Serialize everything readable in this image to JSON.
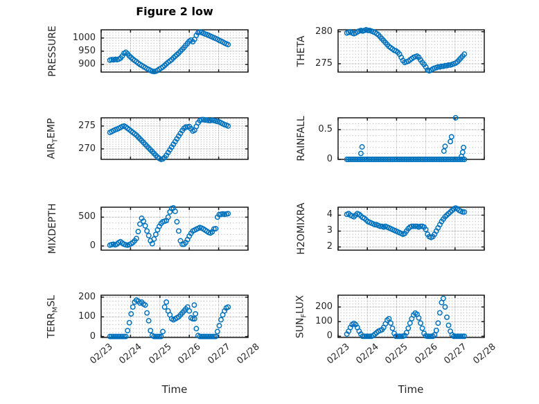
{
  "figure": {
    "title": "Figure 2 low",
    "marker_color": "#0072BD",
    "axis_color": "#1a1a1a",
    "background": "#ffffff"
  },
  "xaxis": {
    "label": "Time",
    "xlim": [
      0,
      5
    ],
    "ticks": [
      0,
      1,
      2,
      3,
      4,
      5
    ],
    "tick_labels": [
      "02/23",
      "02/24",
      "02/25",
      "02/26",
      "02/27",
      "02/28"
    ],
    "minor_step": 0.1
  },
  "chart_data": [
    {
      "type": "scatter",
      "name": "pressure",
      "position": {
        "row": 0,
        "col": 0
      },
      "ylabel": "PRESSURE",
      "ylabel_segments": [
        {
          "text": "PRESSURE",
          "sub": false
        }
      ],
      "ylim": [
        871,
        1031
      ],
      "y_minor_step": 10,
      "yticks": [
        {
          "value": 900,
          "label": "900"
        },
        {
          "value": 950,
          "label": "950"
        },
        {
          "value": 1000,
          "label": "1000"
        }
      ],
      "x_start": 0.3,
      "x_step": 0.06,
      "values": [
        916,
        918,
        917,
        919,
        918,
        920,
        924,
        932,
        942,
        946,
        940,
        932,
        926,
        920,
        915,
        910,
        905,
        900,
        896,
        892,
        888,
        884,
        881,
        877,
        874,
        873,
        874,
        877,
        882,
        886,
        890,
        896,
        902,
        908,
        913,
        918,
        925,
        931,
        937,
        943,
        950,
        957,
        964,
        972,
        980,
        988,
        992,
        986,
        995,
        1010,
        1020,
        1023,
        1021,
        1018,
        1015,
        1013,
        1010,
        1007,
        1004,
        1001,
        998,
        995,
        991,
        988,
        985,
        981,
        978,
        975
      ]
    },
    {
      "type": "scatter",
      "name": "theta",
      "position": {
        "row": 0,
        "col": 1
      },
      "ylabel": "THETA",
      "ylabel_segments": [
        {
          "text": "THETA",
          "sub": false
        }
      ],
      "ylim": [
        273.7,
        280.3
      ],
      "y_minor_step": 0.5,
      "yticks": [
        {
          "value": 275,
          "label": "275"
        },
        {
          "value": 280,
          "label": "280"
        }
      ],
      "x_start": 0.3,
      "x_step": 0.06,
      "values": [
        279.8,
        279.9,
        280.0,
        279.8,
        279.7,
        279.8,
        280.0,
        280.1,
        280.2,
        280.1,
        280.2,
        280.3,
        280.2,
        280.2,
        280.1,
        280.0,
        279.9,
        279.7,
        279.5,
        279.2,
        278.9,
        278.6,
        278.3,
        278.0,
        277.7,
        277.5,
        277.3,
        277.1,
        277.0,
        276.8,
        276.5,
        276.0,
        275.5,
        275.2,
        275.3,
        275.4,
        275.6,
        275.8,
        276.0,
        276.1,
        276.2,
        276.0,
        275.6,
        275.2,
        274.9,
        274.5,
        274.0,
        273.9,
        274.0,
        274.2,
        274.3,
        274.4,
        274.5,
        274.5,
        274.6,
        274.6,
        274.7,
        274.7,
        274.8,
        274.8,
        274.9,
        275.0,
        275.1,
        275.3,
        275.6,
        275.9,
        276.2,
        276.5
      ]
    },
    {
      "type": "scatter",
      "name": "air-temp",
      "position": {
        "row": 1,
        "col": 0
      },
      "ylabel": "AIR_TEMP",
      "ylabel_segments": [
        {
          "text": "AIR",
          "sub": false
        },
        {
          "text": "T",
          "sub": true
        },
        {
          "text": "EMP",
          "sub": false
        }
      ],
      "ylim": [
        267.7,
        276.8
      ],
      "y_minor_step": 0.5,
      "yticks": [
        {
          "value": 270,
          "label": "270"
        },
        {
          "value": 275,
          "label": "275"
        }
      ],
      "x_start": 0.3,
      "x_step": 0.06,
      "values": [
        273.6,
        273.8,
        274.0,
        274.2,
        274.3,
        274.5,
        274.7,
        274.9,
        275.0,
        274.8,
        274.5,
        274.2,
        273.9,
        273.6,
        273.3,
        273.0,
        272.6,
        272.2,
        271.8,
        271.4,
        271.0,
        270.6,
        270.2,
        269.8,
        269.4,
        269.0,
        268.6,
        268.2,
        267.9,
        267.7,
        267.8,
        268.1,
        268.6,
        269.2,
        269.8,
        270.4,
        271.0,
        271.6,
        272.2,
        272.8,
        273.4,
        274.0,
        274.5,
        274.8,
        274.8,
        274.9,
        274.4,
        273.9,
        274.1,
        274.9,
        275.7,
        276.2,
        276.4,
        276.4,
        276.3,
        276.3,
        276.2,
        276.2,
        276.3,
        276.2,
        276.1,
        276.0,
        275.9,
        275.7,
        275.5,
        275.3,
        275.2,
        275.0
      ]
    },
    {
      "type": "scatter",
      "name": "rainfall",
      "position": {
        "row": 1,
        "col": 1
      },
      "ylabel": "RAINFALL",
      "ylabel_segments": [
        {
          "text": "RAINFALL",
          "sub": false
        }
      ],
      "ylim": [
        0,
        0.7
      ],
      "y_minor_step": 0.1,
      "yticks": [
        {
          "value": 0,
          "label": "0"
        },
        {
          "value": 0.5,
          "label": "0.5"
        }
      ],
      "x_start": 0.3,
      "x_step": 0.06,
      "values": [
        0,
        0,
        0,
        0,
        0,
        0,
        0,
        0,
        0,
        0,
        0,
        0,
        0,
        0,
        0,
        0,
        0,
        0,
        0,
        0,
        0,
        0,
        0,
        0,
        0,
        0,
        0,
        0,
        0,
        0,
        0,
        0,
        0,
        0,
        0,
        0,
        0,
        0,
        0,
        0,
        0,
        0,
        0,
        0,
        0,
        0,
        0,
        0,
        0,
        0,
        0,
        0,
        0,
        0,
        0,
        0,
        0,
        0,
        0,
        0,
        0,
        0,
        0,
        0,
        0,
        0,
        0,
        0
      ],
      "extra_points": [
        [
          0.78,
          0.1
        ],
        [
          0.82,
          0.21
        ],
        [
          3.62,
          0.14
        ],
        [
          3.66,
          0.22
        ],
        [
          3.84,
          0.3
        ],
        [
          3.88,
          0.38
        ],
        [
          4.02,
          0.7
        ],
        [
          4.22,
          0.05
        ],
        [
          4.26,
          0.12
        ],
        [
          4.29,
          0.2
        ]
      ]
    },
    {
      "type": "scatter",
      "name": "mixdepth",
      "position": {
        "row": 2,
        "col": 0
      },
      "ylabel": "MIXDEPTH",
      "ylabel_segments": [
        {
          "text": "MIXDEPTH",
          "sub": false
        }
      ],
      "ylim": [
        -72,
        672
      ],
      "y_minor_step": 100,
      "yticks": [
        {
          "value": 0,
          "label": "0"
        },
        {
          "value": 500,
          "label": "500"
        }
      ],
      "x_start": 0.3,
      "x_step": 0.06,
      "values": [
        15,
        25,
        30,
        20,
        35,
        60,
        75,
        50,
        30,
        20,
        15,
        25,
        40,
        60,
        90,
        130,
        250,
        380,
        480,
        430,
        350,
        260,
        180,
        90,
        40,
        120,
        200,
        280,
        340,
        390,
        420,
        430,
        440,
        500,
        590,
        650,
        660,
        600,
        420,
        260,
        90,
        30,
        30,
        60,
        110,
        170,
        220,
        260,
        275,
        290,
        305,
        320,
        310,
        295,
        275,
        255,
        235,
        225,
        245,
        295,
        300,
        500,
        545,
        550,
        555,
        550,
        555,
        560
      ]
    },
    {
      "type": "scatter",
      "name": "h2omixra",
      "position": {
        "row": 2,
        "col": 1
      },
      "ylabel": "H2OMIXRA",
      "ylabel_segments": [
        {
          "text": "H2OMIXRA",
          "sub": false
        }
      ],
      "ylim": [
        1.8,
        4.5
      ],
      "y_minor_step": 0.2,
      "yticks": [
        {
          "value": 2,
          "label": "2"
        },
        {
          "value": 3,
          "label": "3"
        },
        {
          "value": 4,
          "label": "4"
        }
      ],
      "x_start": 0.3,
      "x_step": 0.06,
      "values": [
        4.05,
        4.1,
        4.0,
        3.95,
        3.9,
        4.0,
        4.1,
        4.05,
        3.95,
        3.85,
        3.8,
        3.7,
        3.6,
        3.55,
        3.5,
        3.45,
        3.4,
        3.4,
        3.35,
        3.3,
        3.3,
        3.25,
        3.3,
        3.25,
        3.2,
        3.15,
        3.1,
        3.05,
        3.0,
        2.95,
        2.9,
        2.85,
        2.8,
        2.85,
        3.0,
        3.15,
        3.25,
        3.3,
        3.3,
        3.3,
        3.3,
        3.25,
        3.3,
        3.3,
        3.25,
        3.1,
        2.8,
        2.65,
        2.6,
        2.65,
        2.8,
        3.0,
        3.2,
        3.4,
        3.6,
        3.75,
        3.9,
        4.0,
        4.1,
        4.2,
        4.3,
        4.4,
        4.45,
        4.4,
        4.3,
        4.25,
        4.2,
        4.2
      ]
    },
    {
      "type": "scatter",
      "name": "terr-msl",
      "position": {
        "row": 3,
        "col": 0
      },
      "ylabel": "TERR_MSL",
      "ylabel_segments": [
        {
          "text": "TERR",
          "sub": false
        },
        {
          "text": "M",
          "sub": true
        },
        {
          "text": "SL",
          "sub": false
        }
      ],
      "ylim": [
        -5,
        210
      ],
      "y_minor_step": 20,
      "yticks": [
        {
          "value": 0,
          "label": "0"
        },
        {
          "value": 100,
          "label": "100"
        },
        {
          "value": 200,
          "label": "200"
        }
      ],
      "x_start": 0.3,
      "x_step": 0.06,
      "values": [
        0,
        0,
        0,
        0,
        0,
        0,
        0,
        0,
        0,
        0,
        30,
        70,
        115,
        150,
        175,
        185,
        180,
        170,
        175,
        165,
        160,
        120,
        80,
        30,
        5,
        0,
        0,
        0,
        0,
        0,
        25,
        150,
        175,
        130,
        110,
        90,
        85,
        90,
        95,
        100,
        110,
        120,
        130,
        140,
        150,
        130,
        95,
        90,
        90,
        40,
        5,
        0,
        0,
        0,
        0,
        0,
        0,
        0,
        0,
        0,
        0,
        25,
        55,
        85,
        110,
        130,
        145,
        150
      ],
      "extra_points": [
        [
          3.17,
          160
        ],
        [
          3.21,
          115
        ]
      ]
    },
    {
      "type": "scatter",
      "name": "sun-flux",
      "position": {
        "row": 3,
        "col": 1
      },
      "ylabel": "SUN_FLUX",
      "ylabel_segments": [
        {
          "text": "SUN",
          "sub": false
        },
        {
          "text": "F",
          "sub": true
        },
        {
          "text": "LUX",
          "sub": false
        }
      ],
      "ylim": [
        -8,
        280
      ],
      "y_minor_step": 20,
      "yticks": [
        {
          "value": 0,
          "label": "0"
        },
        {
          "value": 100,
          "label": "100"
        },
        {
          "value": 200,
          "label": "200"
        }
      ],
      "x_start": 0.3,
      "x_step": 0.06,
      "values": [
        15,
        35,
        60,
        80,
        88,
        80,
        60,
        35,
        15,
        0,
        0,
        0,
        0,
        0,
        0,
        5,
        15,
        25,
        35,
        40,
        45,
        60,
        85,
        110,
        120,
        90,
        55,
        20,
        0,
        0,
        0,
        0,
        0,
        5,
        25,
        55,
        90,
        120,
        145,
        158,
        150,
        125,
        90,
        55,
        20,
        3,
        0,
        0,
        0,
        0,
        10,
        40,
        90,
        160,
        230,
        258,
        200,
        130,
        75,
        35,
        10,
        0,
        0,
        0,
        0,
        0,
        0,
        0
      ]
    }
  ]
}
